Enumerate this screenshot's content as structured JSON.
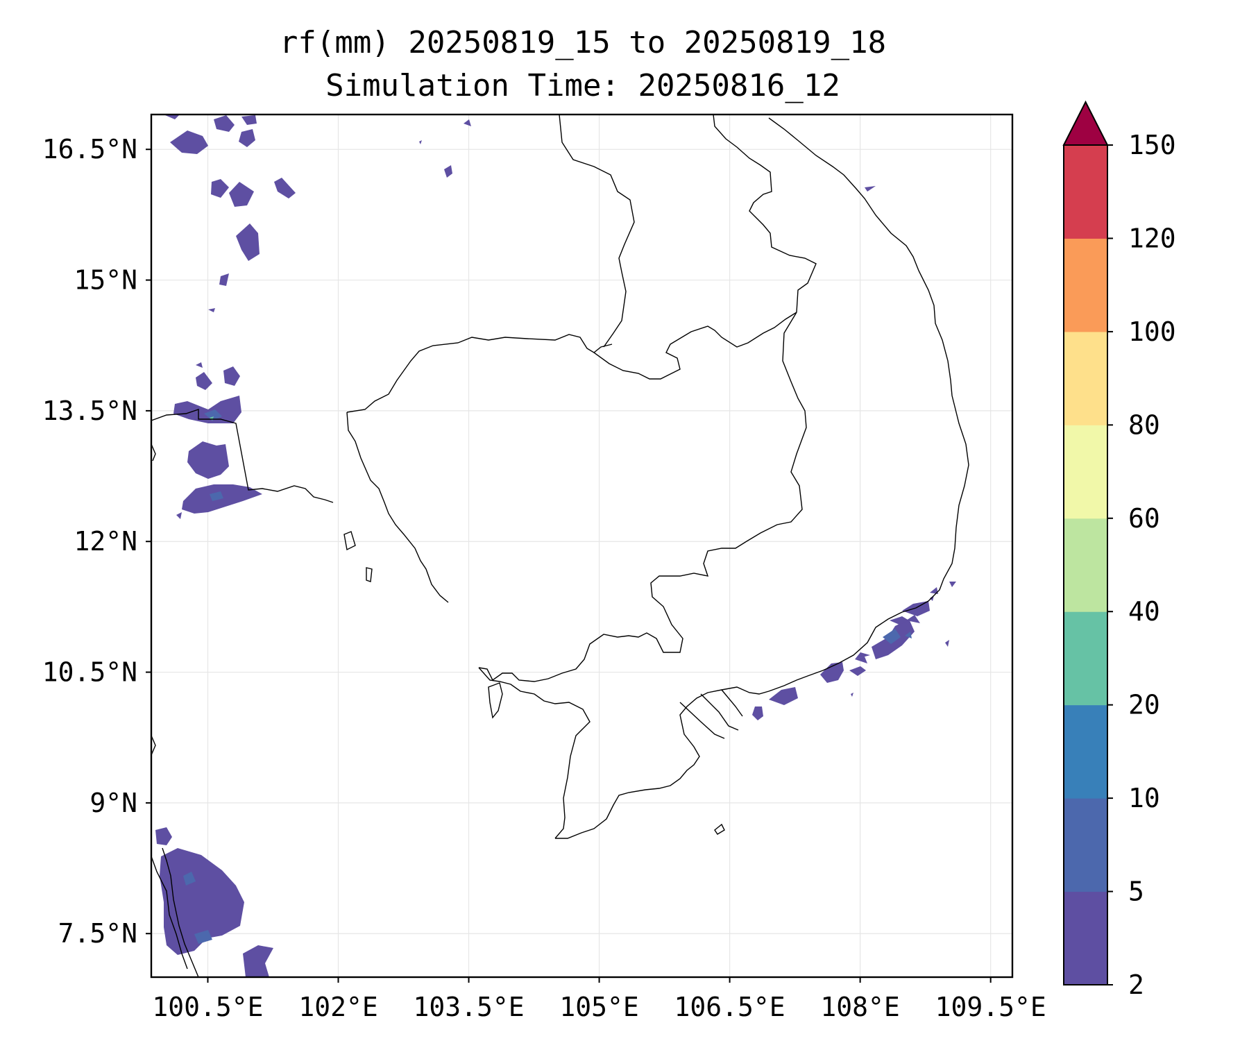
{
  "title": {
    "line1": "rf(mm) 20250819_15 to 20250819_18",
    "line2": "Simulation Time: 20250816_12"
  },
  "map": {
    "extent": {
      "lon_min": 99.85,
      "lon_max": 109.75,
      "lat_min": 7.0,
      "lat_max": 16.9
    },
    "lon_ticks": [
      {
        "value": 100.5,
        "label": "100.5°E"
      },
      {
        "value": 102.0,
        "label": "102°E"
      },
      {
        "value": 103.5,
        "label": "103.5°E"
      },
      {
        "value": 105.0,
        "label": "105°E"
      },
      {
        "value": 106.5,
        "label": "106.5°E"
      },
      {
        "value": 108.0,
        "label": "108°E"
      },
      {
        "value": 109.5,
        "label": "109.5°E"
      }
    ],
    "lat_ticks": [
      {
        "value": 16.5,
        "label": "16.5°N"
      },
      {
        "value": 15.0,
        "label": "15°N"
      },
      {
        "value": 13.5,
        "label": "13.5°N"
      },
      {
        "value": 12.0,
        "label": "12°N"
      },
      {
        "value": 10.5,
        "label": "10.5°N"
      },
      {
        "value": 9.0,
        "label": "9°N"
      },
      {
        "value": 7.5,
        "label": "7.5°N"
      }
    ],
    "grid": true
  },
  "colorbar": {
    "levels": [
      {
        "label": "2",
        "color": "#5e4fa2"
      },
      {
        "label": "5",
        "color": "#4c68ad"
      },
      {
        "label": "10",
        "color": "#3880b9"
      },
      {
        "label": "20",
        "color": "#66c2a5"
      },
      {
        "label": "40",
        "color": "#bde5a0"
      },
      {
        "label": "60",
        "color": "#f1f8a9"
      },
      {
        "label": "80",
        "color": "#fee08b"
      },
      {
        "label": "100",
        "color": "#fa9b58"
      },
      {
        "label": "120",
        "color": "#d53e4f"
      },
      {
        "label": "150",
        "color": ""
      }
    ],
    "extend_color": "#9e0142"
  }
}
